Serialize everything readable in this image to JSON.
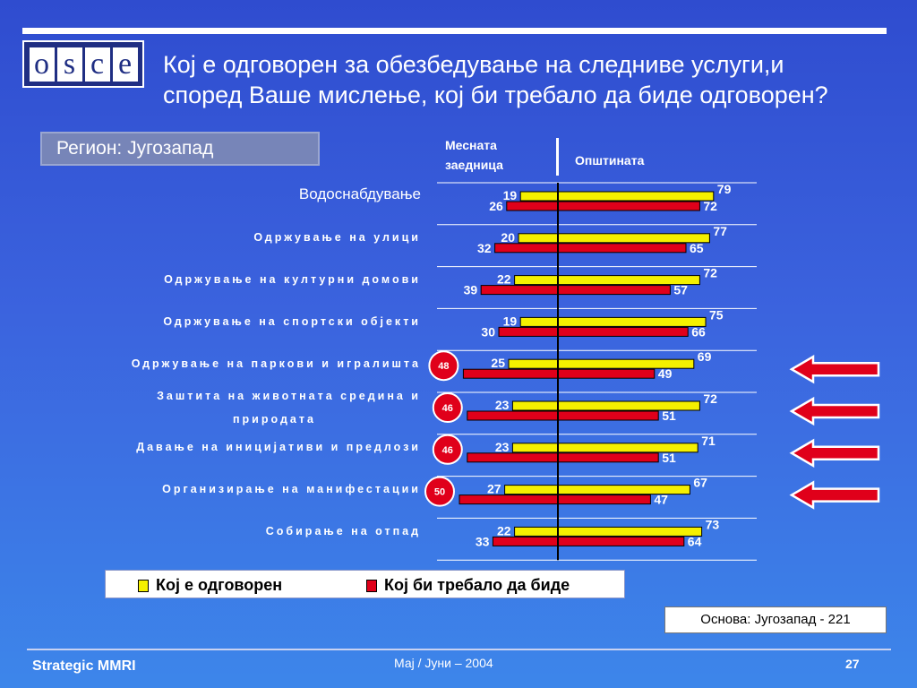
{
  "title_line1": "Кој е одговорен за обезбедување на следниве услуги,и",
  "title_line2": "според Ваше мислење, кој би требало да биде одговорен?",
  "logo_letters": [
    "o",
    "s",
    "c",
    "e"
  ],
  "region_label": "Регион: Југозапад",
  "col_header_left_1": "Месната",
  "col_header_left_2": "заедница",
  "col_header_right": "Општината",
  "legend": {
    "responsible": "Кој е одговорен",
    "should_be": "Кој би требало да биде"
  },
  "base_note": "Основа: Југозапад  - 221",
  "footer": {
    "left": "Strategic MMRI",
    "center": "Мај / Јуни – 2004",
    "page": "27"
  },
  "colors": {
    "yellow": "#f5f000",
    "red": "#e0001a",
    "arrow": "#e0001a",
    "callout": "#e0001a"
  },
  "chart_data": {
    "type": "bar",
    "orientation": "horizontal-diverging",
    "left_group": "Месната заедница",
    "right_group": "Општината",
    "categories": [
      {
        "label": "Водоснабдување",
        "plain": true
      },
      {
        "label": "Одржување на улици"
      },
      {
        "label": "Одржување на културни домови"
      },
      {
        "label": "Одржување на спортски објекти"
      },
      {
        "label": "Одржување на паркови и игралишта"
      },
      {
        "label": "Заштита на животната средина и природата",
        "two_lines": [
          "Заштита на животната средина и",
          "природата"
        ]
      },
      {
        "label": "Давање на иницијативи и предлози"
      },
      {
        "label": "Организирање на манифестации"
      },
      {
        "label": "Собирање на отпад"
      }
    ],
    "series": [
      {
        "name": "Кој е одговорен",
        "color": "#f5f000",
        "local": [
          19,
          20,
          22,
          19,
          25,
          23,
          23,
          27,
          22
        ],
        "municipality": [
          79,
          77,
          72,
          75,
          69,
          72,
          71,
          67,
          73
        ]
      },
      {
        "name": "Кој би требало да биде",
        "color": "#e0001a",
        "local": [
          26,
          32,
          39,
          30,
          48,
          46,
          46,
          50,
          33
        ],
        "municipality": [
          72,
          65,
          57,
          66,
          49,
          51,
          51,
          47,
          64
        ]
      }
    ],
    "highlighted_local": [
      {
        "index": 4,
        "value": 48
      },
      {
        "index": 5,
        "value": 46
      },
      {
        "index": 6,
        "value": 46
      },
      {
        "index": 7,
        "value": 50
      }
    ],
    "arrow_rows": [
      4,
      5,
      6,
      7
    ]
  }
}
